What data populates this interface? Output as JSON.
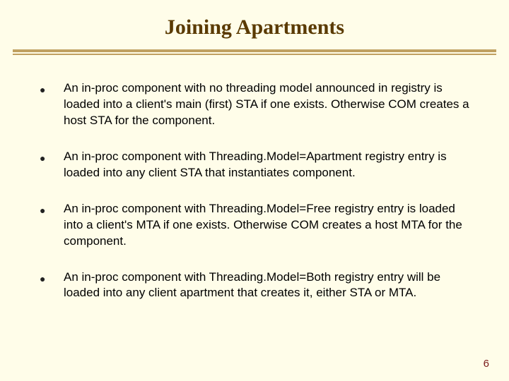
{
  "slide": {
    "title": "Joining Apartments",
    "page_number": "6",
    "background_color": "#fffde9",
    "title_color": "#5a3a00",
    "divider_color": "#c0a060",
    "page_number_color": "#7a1a1a",
    "title_fontsize": 30,
    "body_fontsize": 17,
    "bullets": [
      "An in-proc component with no threading model announced in registry is loaded into a client's main (first) STA if one exists. Otherwise COM creates a host STA for the component.",
      "An in-proc component with Threading.Model=Apartment registry entry is loaded into any client STA that instantiates component.",
      "An in-proc component with Threading.Model=Free registry entry is loaded into a client's MTA if one exists.  Otherwise COM creates a host MTA for the component.",
      "An in-proc component with Threading.Model=Both registry entry will be loaded into any client apartment that creates it, either STA or MTA."
    ]
  }
}
